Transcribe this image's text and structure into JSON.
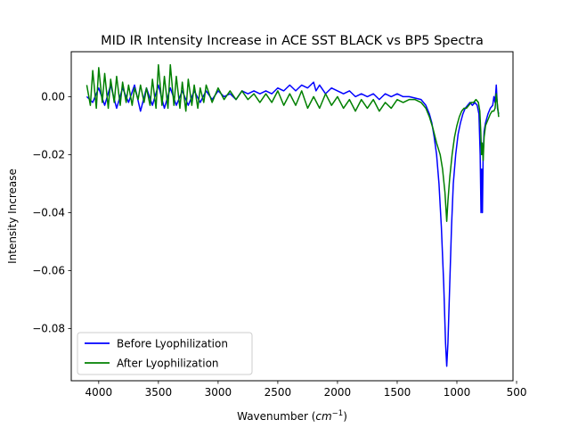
{
  "chart_data": {
    "type": "line",
    "title": "MID IR Intensity Increase in ACE SST BLACK vs BP5 Spectra",
    "xlabel_main": "Wavenumber (",
    "xlabel_unit": "cm",
    "xlabel_sup": "−1",
    "xlabel_close": ")",
    "ylabel": "Intensity Increase",
    "xlim": [
      4230,
      530
    ],
    "ylim": [
      -0.098,
      0.0155
    ],
    "x_reversed": true,
    "grid": false,
    "legend_position": "lower-left",
    "x_ticks": [
      {
        "value": 4000,
        "label": "4000"
      },
      {
        "value": 3500,
        "label": "3500"
      },
      {
        "value": 3000,
        "label": "3000"
      },
      {
        "value": 2500,
        "label": "2500"
      },
      {
        "value": 2000,
        "label": "2000"
      },
      {
        "value": 1500,
        "label": "1500"
      },
      {
        "value": 1000,
        "label": "1000"
      },
      {
        "value": 500,
        "label": "500"
      }
    ],
    "y_ticks": [
      {
        "value": 0.0,
        "label": "0.00"
      },
      {
        "value": -0.02,
        "label": "−0.02"
      },
      {
        "value": -0.04,
        "label": "−0.04"
      },
      {
        "value": -0.06,
        "label": "−0.06"
      },
      {
        "value": -0.08,
        "label": "−0.08"
      }
    ],
    "series": [
      {
        "name": "Before Lyophilization",
        "color": "#0000ff",
        "points": [
          [
            4100,
            0.0
          ],
          [
            4050,
            -0.002
          ],
          [
            4000,
            0.003
          ],
          [
            3950,
            -0.003
          ],
          [
            3900,
            0.004
          ],
          [
            3850,
            -0.004
          ],
          [
            3800,
            0.003
          ],
          [
            3750,
            -0.002
          ],
          [
            3700,
            0.004
          ],
          [
            3650,
            -0.005
          ],
          [
            3600,
            0.003
          ],
          [
            3550,
            -0.003
          ],
          [
            3500,
            0.004
          ],
          [
            3450,
            -0.004
          ],
          [
            3400,
            0.003
          ],
          [
            3350,
            -0.003
          ],
          [
            3300,
            0.002
          ],
          [
            3250,
            -0.003
          ],
          [
            3200,
            0.002
          ],
          [
            3150,
            -0.002
          ],
          [
            3100,
            0.002
          ],
          [
            3050,
            -0.001
          ],
          [
            3000,
            0.002
          ],
          [
            2950,
            0.0
          ],
          [
            2900,
            0.001
          ],
          [
            2850,
            -0.001
          ],
          [
            2800,
            0.002
          ],
          [
            2750,
            0.001
          ],
          [
            2700,
            0.002
          ],
          [
            2650,
            0.001
          ],
          [
            2600,
            0.002
          ],
          [
            2550,
            0.001
          ],
          [
            2500,
            0.003
          ],
          [
            2450,
            0.002
          ],
          [
            2400,
            0.004
          ],
          [
            2350,
            0.002
          ],
          [
            2300,
            0.004
          ],
          [
            2250,
            0.003
          ],
          [
            2200,
            0.005
          ],
          [
            2180,
            0.002
          ],
          [
            2150,
            0.004
          ],
          [
            2100,
            0.001
          ],
          [
            2050,
            0.003
          ],
          [
            2000,
            0.002
          ],
          [
            1950,
            0.001
          ],
          [
            1900,
            0.002
          ],
          [
            1850,
            0.0
          ],
          [
            1800,
            0.001
          ],
          [
            1750,
            0.0
          ],
          [
            1700,
            0.001
          ],
          [
            1650,
            -0.001
          ],
          [
            1600,
            0.001
          ],
          [
            1550,
            0.0
          ],
          [
            1500,
            0.001
          ],
          [
            1450,
            0.0
          ],
          [
            1400,
            0.0
          ],
          [
            1350,
            -0.0005
          ],
          [
            1300,
            -0.001
          ],
          [
            1260,
            -0.003
          ],
          [
            1230,
            -0.006
          ],
          [
            1210,
            -0.009
          ],
          [
            1190,
            -0.014
          ],
          [
            1170,
            -0.02
          ],
          [
            1150,
            -0.03
          ],
          [
            1130,
            -0.045
          ],
          [
            1110,
            -0.065
          ],
          [
            1095,
            -0.085
          ],
          [
            1085,
            -0.093
          ],
          [
            1075,
            -0.085
          ],
          [
            1060,
            -0.065
          ],
          [
            1045,
            -0.045
          ],
          [
            1030,
            -0.03
          ],
          [
            1010,
            -0.02
          ],
          [
            990,
            -0.013
          ],
          [
            970,
            -0.009
          ],
          [
            950,
            -0.006
          ],
          [
            930,
            -0.004
          ],
          [
            910,
            -0.003
          ],
          [
            890,
            -0.002
          ],
          [
            870,
            -0.003
          ],
          [
            850,
            -0.002
          ],
          [
            830,
            -0.003
          ],
          [
            815,
            -0.006
          ],
          [
            805,
            -0.02
          ],
          [
            798,
            -0.04
          ],
          [
            792,
            -0.025
          ],
          [
            786,
            -0.04
          ],
          [
            780,
            -0.02
          ],
          [
            772,
            -0.012
          ],
          [
            760,
            -0.009
          ],
          [
            740,
            -0.006
          ],
          [
            720,
            -0.004
          ],
          [
            700,
            -0.003
          ],
          [
            690,
            0.0
          ],
          [
            680,
            -0.002
          ],
          [
            670,
            0.004
          ],
          [
            660,
            -0.004
          ],
          [
            650,
            -0.006
          ]
        ]
      },
      {
        "name": "After Lyophilization",
        "color": "#008000",
        "points": [
          [
            4100,
            0.004
          ],
          [
            4070,
            -0.003
          ],
          [
            4050,
            0.009
          ],
          [
            4020,
            -0.004
          ],
          [
            4000,
            0.01
          ],
          [
            3970,
            -0.002
          ],
          [
            3950,
            0.008
          ],
          [
            3920,
            -0.004
          ],
          [
            3900,
            0.006
          ],
          [
            3870,
            -0.002
          ],
          [
            3850,
            0.007
          ],
          [
            3820,
            -0.003
          ],
          [
            3800,
            0.005
          ],
          [
            3770,
            -0.002
          ],
          [
            3750,
            0.004
          ],
          [
            3720,
            -0.003
          ],
          [
            3700,
            0.003
          ],
          [
            3670,
            -0.001
          ],
          [
            3650,
            0.004
          ],
          [
            3620,
            -0.002
          ],
          [
            3600,
            0.003
          ],
          [
            3570,
            -0.003
          ],
          [
            3550,
            0.006
          ],
          [
            3520,
            -0.004
          ],
          [
            3500,
            0.011
          ],
          [
            3470,
            -0.003
          ],
          [
            3450,
            0.007
          ],
          [
            3420,
            -0.004
          ],
          [
            3400,
            0.011
          ],
          [
            3370,
            -0.003
          ],
          [
            3350,
            0.007
          ],
          [
            3320,
            -0.004
          ],
          [
            3300,
            0.005
          ],
          [
            3270,
            -0.005
          ],
          [
            3250,
            0.006
          ],
          [
            3220,
            -0.003
          ],
          [
            3200,
            0.004
          ],
          [
            3170,
            -0.004
          ],
          [
            3150,
            0.003
          ],
          [
            3120,
            -0.002
          ],
          [
            3100,
            0.004
          ],
          [
            3050,
            -0.002
          ],
          [
            3000,
            0.003
          ],
          [
            2950,
            -0.001
          ],
          [
            2900,
            0.002
          ],
          [
            2850,
            -0.001
          ],
          [
            2800,
            0.002
          ],
          [
            2750,
            -0.001
          ],
          [
            2700,
            0.001
          ],
          [
            2650,
            -0.002
          ],
          [
            2600,
            0.001
          ],
          [
            2550,
            -0.002
          ],
          [
            2500,
            0.002
          ],
          [
            2450,
            -0.003
          ],
          [
            2400,
            0.001
          ],
          [
            2350,
            -0.003
          ],
          [
            2300,
            0.002
          ],
          [
            2250,
            -0.004
          ],
          [
            2200,
            0.0
          ],
          [
            2150,
            -0.004
          ],
          [
            2100,
            0.001
          ],
          [
            2050,
            -0.003
          ],
          [
            2000,
            0.0
          ],
          [
            1950,
            -0.004
          ],
          [
            1900,
            -0.001
          ],
          [
            1850,
            -0.005
          ],
          [
            1800,
            -0.001
          ],
          [
            1750,
            -0.004
          ],
          [
            1700,
            -0.001
          ],
          [
            1650,
            -0.005
          ],
          [
            1600,
            -0.002
          ],
          [
            1550,
            -0.004
          ],
          [
            1500,
            -0.001
          ],
          [
            1450,
            -0.002
          ],
          [
            1400,
            -0.001
          ],
          [
            1350,
            -0.001
          ],
          [
            1300,
            -0.002
          ],
          [
            1260,
            -0.004
          ],
          [
            1230,
            -0.007
          ],
          [
            1200,
            -0.011
          ],
          [
            1170,
            -0.016
          ],
          [
            1140,
            -0.02
          ],
          [
            1120,
            -0.025
          ],
          [
            1100,
            -0.033
          ],
          [
            1085,
            -0.043
          ],
          [
            1075,
            -0.036
          ],
          [
            1060,
            -0.028
          ],
          [
            1040,
            -0.02
          ],
          [
            1020,
            -0.014
          ],
          [
            1000,
            -0.01
          ],
          [
            980,
            -0.007
          ],
          [
            960,
            -0.005
          ],
          [
            940,
            -0.004
          ],
          [
            920,
            -0.004
          ],
          [
            900,
            -0.003
          ],
          [
            880,
            -0.002
          ],
          [
            860,
            -0.002
          ],
          [
            840,
            -0.001
          ],
          [
            820,
            -0.002
          ],
          [
            808,
            -0.005
          ],
          [
            800,
            -0.012
          ],
          [
            794,
            -0.02
          ],
          [
            788,
            -0.016
          ],
          [
            780,
            -0.022
          ],
          [
            772,
            -0.014
          ],
          [
            760,
            -0.01
          ],
          [
            740,
            -0.008
          ],
          [
            720,
            -0.006
          ],
          [
            705,
            -0.005
          ],
          [
            690,
            -0.005
          ],
          [
            680,
            -0.004
          ],
          [
            670,
            0.001
          ],
          [
            660,
            -0.003
          ],
          [
            650,
            -0.007
          ]
        ]
      }
    ]
  }
}
